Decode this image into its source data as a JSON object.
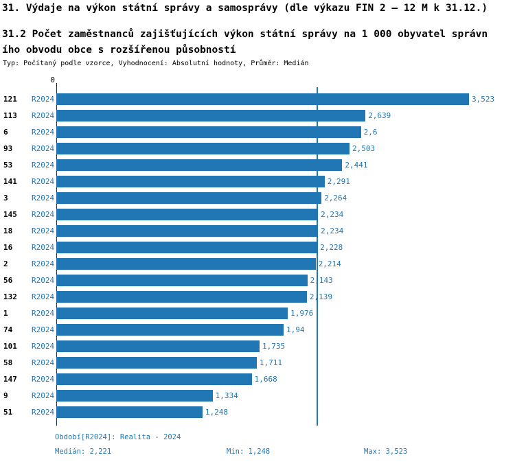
{
  "header": {
    "title": "31. Výdaje na výkon státní správy a samosprávy (dle výkazu FIN 2 – 12 M k 31.12.)",
    "subtitle_lines": [
      "31.2 Počet zaměstnanců zajišťujících výkon státní správy na 1 000 obyvatel správn",
      "ího obvodu obce s rozšířenou působností"
    ],
    "meta": "Typ: Počítaný podle vzorce, Vyhodnocení: Absolutní hodnoty, Průměr: Medián"
  },
  "chart_data": {
    "type": "bar",
    "orientation": "horizontal",
    "zero_label": "0",
    "x_axis_start": 0,
    "median_value": 2.221,
    "series_label": "R2024",
    "rows": [
      {
        "id": "121",
        "period": "R2024",
        "value": 3.523,
        "label": "3,523"
      },
      {
        "id": "113",
        "period": "R2024",
        "value": 2.639,
        "label": "2,639"
      },
      {
        "id": "6",
        "period": "R2024",
        "value": 2.6,
        "label": "2,6"
      },
      {
        "id": "93",
        "period": "R2024",
        "value": 2.503,
        "label": "2,503"
      },
      {
        "id": "53",
        "period": "R2024",
        "value": 2.441,
        "label": "2,441"
      },
      {
        "id": "141",
        "period": "R2024",
        "value": 2.291,
        "label": "2,291"
      },
      {
        "id": "3",
        "period": "R2024",
        "value": 2.264,
        "label": "2,264"
      },
      {
        "id": "145",
        "period": "R2024",
        "value": 2.234,
        "label": "2,234"
      },
      {
        "id": "18",
        "period": "R2024",
        "value": 2.234,
        "label": "2,234"
      },
      {
        "id": "16",
        "period": "R2024",
        "value": 2.228,
        "label": "2,228"
      },
      {
        "id": "2",
        "period": "R2024",
        "value": 2.214,
        "label": "2,214"
      },
      {
        "id": "56",
        "period": "R2024",
        "value": 2.143,
        "label": "2,143"
      },
      {
        "id": "132",
        "period": "R2024",
        "value": 2.139,
        "label": "2,139"
      },
      {
        "id": "1",
        "period": "R2024",
        "value": 1.976,
        "label": "1,976"
      },
      {
        "id": "74",
        "period": "R2024",
        "value": 1.94,
        "label": "1,94"
      },
      {
        "id": "101",
        "period": "R2024",
        "value": 1.735,
        "label": "1,735"
      },
      {
        "id": "58",
        "period": "R2024",
        "value": 1.711,
        "label": "1,711"
      },
      {
        "id": "147",
        "period": "R2024",
        "value": 1.668,
        "label": "1,668"
      },
      {
        "id": "9",
        "period": "R2024",
        "value": 1.334,
        "label": "1,334"
      },
      {
        "id": "51",
        "period": "R2024",
        "value": 1.248,
        "label": "1,248"
      }
    ]
  },
  "footer": {
    "period": "Období[R2024]: Realita - 2024",
    "median": "Medián: 2,221",
    "min": "Min: 1,248",
    "max": "Max: 3,523"
  },
  "colors": {
    "bar": "#2077b4",
    "accent_text": "#1f77b4",
    "axis": "#16324f"
  }
}
